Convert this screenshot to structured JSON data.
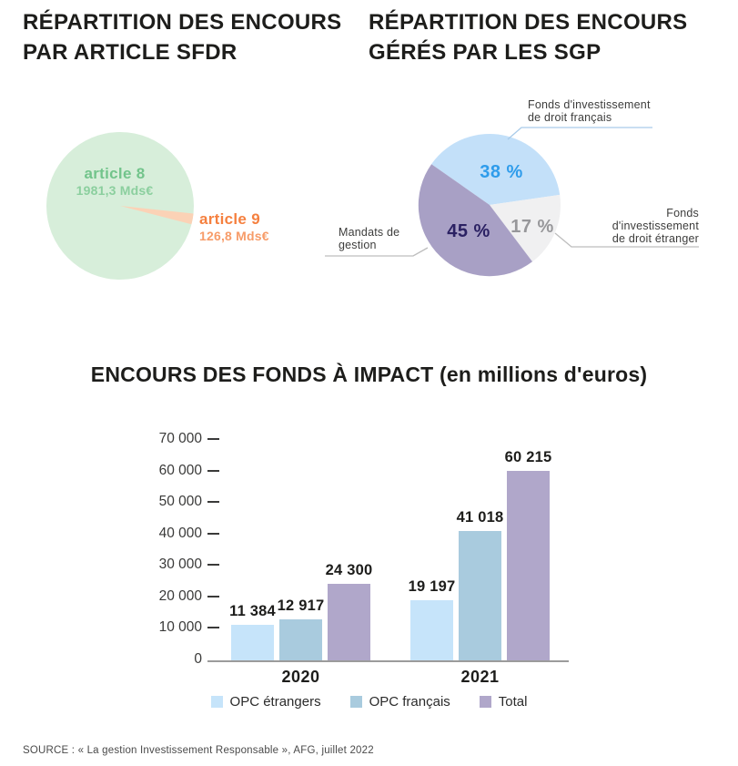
{
  "page": {
    "background": "#ffffff"
  },
  "sfdr_section": {
    "title": "RÉPARTITION DES ENCOURS PAR ARTICLE SFDR",
    "article8": {
      "name": "article 8",
      "value_text": "1981,3 Mds€"
    },
    "article9": {
      "name": "article 9",
      "value_text": "126,8 Mds€"
    }
  },
  "sgp_section": {
    "title": "RÉPARTITION DES ENCOURS GÉRÉS PAR LES SGP",
    "pct_labels": {
      "francais": "38 %",
      "etranger": "17 %",
      "mandats": "45 %"
    },
    "callouts": {
      "francais": "Fonds d'investissement de droit français",
      "etranger": "Fonds d'investissement de droit étranger",
      "mandats": "Mandats de gestion"
    }
  },
  "impact_section": {
    "title_main": "ENCOURS DES FONDS À IMPACT",
    "title_unit": "(en millions d'euros)"
  },
  "source": {
    "text": "SOURCE : « La gestion Investissement Responsable », AFG, juillet 2022"
  },
  "chart_data": [
    {
      "type": "pie",
      "title": "RÉPARTITION DES ENCOURS PAR ARTICLE SFDR",
      "unit": "Mds€",
      "slices": [
        {
          "label": "article 8",
          "value": 1981.3,
          "color": "#d7eeda",
          "text_color": "#72c48b",
          "value_color": "#8bcf9e"
        },
        {
          "label": "article 9",
          "value": 126.8,
          "color": "#fbd2b6",
          "text_color": "#f5803f",
          "value_color": "#f79c69"
        }
      ],
      "legend_position": "inside/outside labels"
    },
    {
      "type": "pie",
      "title": "RÉPARTITION DES ENCOURS GÉRÉS PAR LES SGP",
      "unit": "%",
      "slices": [
        {
          "label": "Fonds d'investissement de droit français",
          "value": 38,
          "color": "#c3e0f9",
          "pct_color": "#2e9ceb",
          "line_color": "#a9cbe9"
        },
        {
          "label": "Fonds d'investissement de droit étranger",
          "value": 17,
          "color": "#f0f0f1",
          "pct_color": "#97979a",
          "line_color": "#bdbdbd"
        },
        {
          "label": "Mandats de gestion",
          "value": 45,
          "color": "#a8a0c5",
          "pct_color": "#2b2163",
          "line_color": "#bdbdbd"
        }
      ],
      "legend_position": "outside callout labels"
    },
    {
      "type": "bar",
      "title": "ENCOURS DES FONDS À IMPACT (en millions d'euros)",
      "categories": [
        "2020",
        "2021"
      ],
      "series": [
        {
          "name": "OPC étrangers",
          "color": "#c6e4fa",
          "values": [
            11384,
            19197
          ]
        },
        {
          "name": "OPC français",
          "color": "#a9cbde",
          "values": [
            12917,
            41018
          ]
        },
        {
          "name": "Total",
          "color": "#b0a7ca",
          "values": [
            24300,
            60215
          ]
        }
      ],
      "xlabel": "",
      "ylabel": "",
      "ylim": [
        0,
        70000
      ],
      "ytick_step": 10000,
      "grid": false,
      "legend_position": "bottom"
    }
  ]
}
